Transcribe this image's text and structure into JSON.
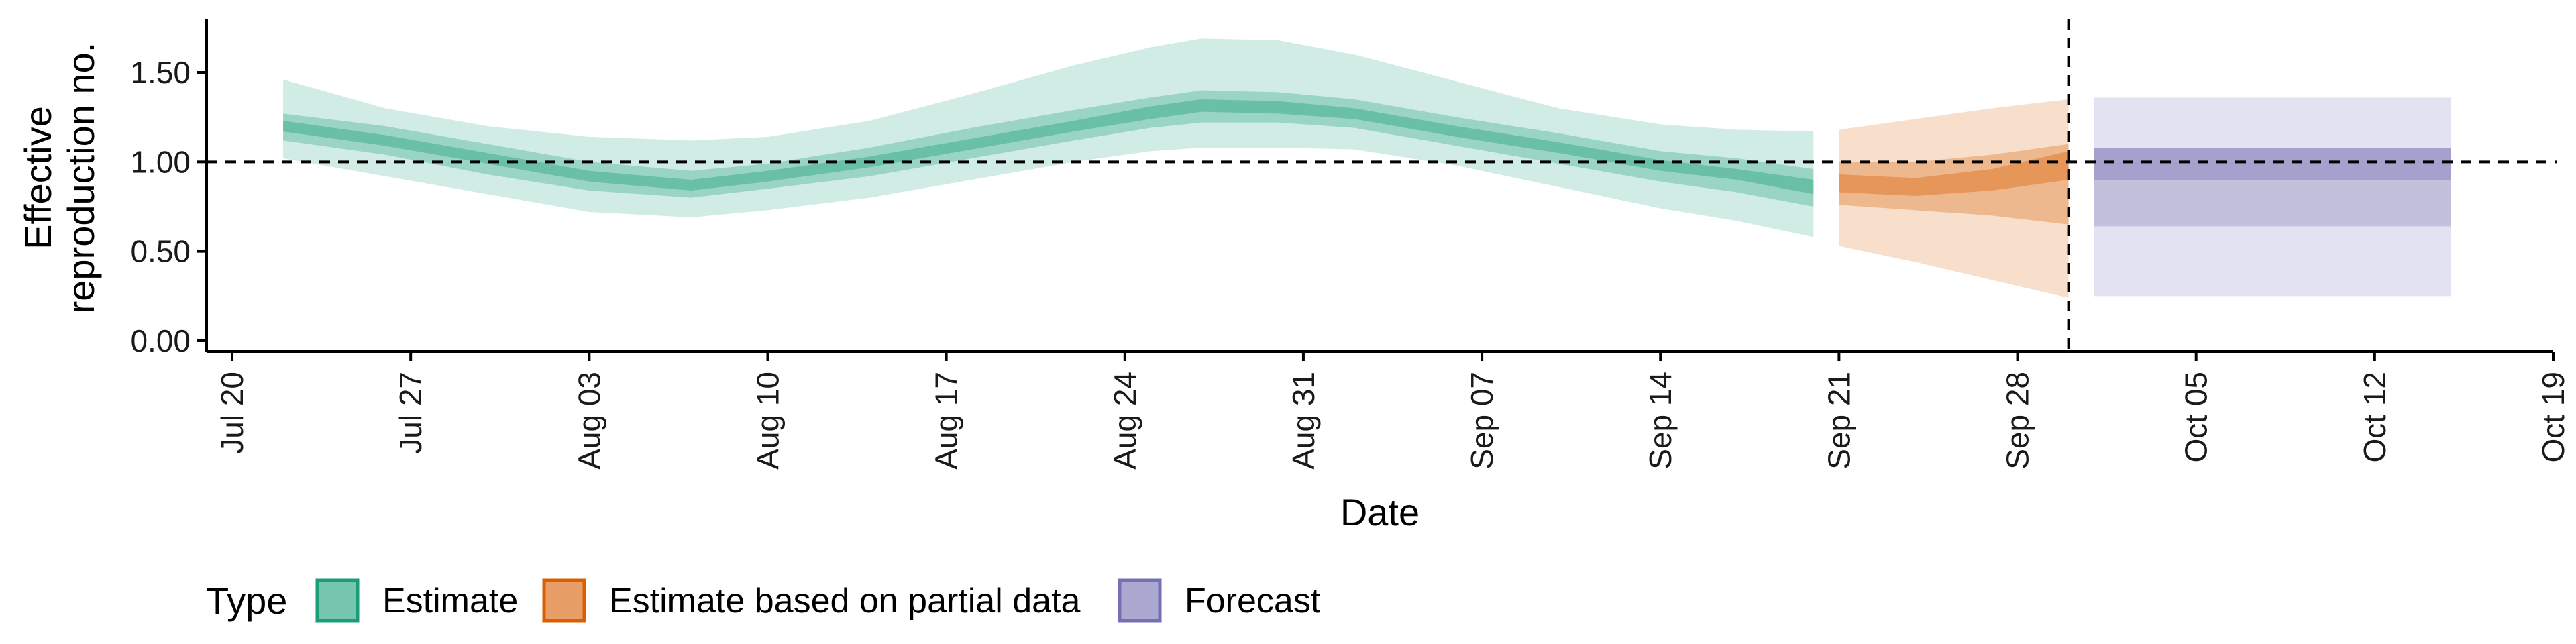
{
  "chart_data": {
    "type": "area",
    "xlabel": "Date",
    "ylabel_lines": [
      "Effective",
      "reproduction no."
    ],
    "ylim": [
      -0.06,
      1.8
    ],
    "y_ticks": [
      0.0,
      0.5,
      1.0,
      1.5
    ],
    "y_tick_labels": [
      "0.00",
      "0.50",
      "1.00",
      "1.50"
    ],
    "x_range": [
      "2020-07-19",
      "2020-10-19"
    ],
    "x_ticks": [
      "2020-07-20",
      "2020-07-27",
      "2020-08-03",
      "2020-08-10",
      "2020-08-17",
      "2020-08-24",
      "2020-08-31",
      "2020-09-07",
      "2020-09-14",
      "2020-09-21",
      "2020-09-28",
      "2020-10-05",
      "2020-10-12",
      "2020-10-19"
    ],
    "x_tick_labels": [
      "Jul 20",
      "Jul 27",
      "Aug 03",
      "Aug 10",
      "Aug 17",
      "Aug 24",
      "Aug 31",
      "Sep 07",
      "Sep 14",
      "Sep 21",
      "Sep 28",
      "Oct 05",
      "Oct 12",
      "Oct 19"
    ],
    "reference_line_y": 1.0,
    "vertical_line_x": "2020-09-30",
    "legend": {
      "title": "Type",
      "position": "bottom-left",
      "items": [
        {
          "label": "Estimate",
          "fill": "#1b9e77",
          "border": "#1b9e77"
        },
        {
          "label": "Estimate based on partial data",
          "fill": "#d95f02",
          "border": "#d95f02"
        },
        {
          "label": "Forecast",
          "fill": "#7570b3",
          "border": "#7570b3"
        }
      ]
    },
    "series": [
      {
        "name": "Estimate",
        "color": "#1b9e77",
        "x": [
          "2020-07-22",
          "2020-07-26",
          "2020-07-30",
          "2020-08-03",
          "2020-08-07",
          "2020-08-10",
          "2020-08-14",
          "2020-08-18",
          "2020-08-22",
          "2020-08-25",
          "2020-08-27",
          "2020-08-30",
          "2020-09-02",
          "2020-09-06",
          "2020-09-10",
          "2020-09-14",
          "2020-09-17",
          "2020-09-20"
        ],
        "median": [
          1.2,
          1.12,
          1.02,
          0.92,
          0.87,
          0.92,
          1.0,
          1.1,
          1.2,
          1.28,
          1.32,
          1.31,
          1.27,
          1.17,
          1.08,
          0.98,
          0.93,
          0.86
        ],
        "lower_90": [
          1.02,
          0.92,
          0.82,
          0.72,
          0.69,
          0.73,
          0.8,
          0.9,
          1.0,
          1.06,
          1.08,
          1.08,
          1.07,
          0.98,
          0.86,
          0.74,
          0.67,
          0.58
        ],
        "upper_90": [
          1.46,
          1.3,
          1.2,
          1.14,
          1.12,
          1.14,
          1.23,
          1.38,
          1.54,
          1.64,
          1.69,
          1.68,
          1.6,
          1.45,
          1.3,
          1.21,
          1.18,
          1.17
        ],
        "lower_50": [
          1.12,
          1.04,
          0.93,
          0.84,
          0.8,
          0.85,
          0.92,
          1.02,
          1.12,
          1.19,
          1.22,
          1.22,
          1.19,
          1.09,
          0.99,
          0.89,
          0.83,
          0.75
        ],
        "upper_50": [
          1.27,
          1.2,
          1.1,
          1.0,
          0.95,
          0.99,
          1.08,
          1.19,
          1.29,
          1.36,
          1.4,
          1.39,
          1.35,
          1.25,
          1.16,
          1.06,
          1.02,
          0.96
        ],
        "lower_20": [
          1.17,
          1.09,
          0.99,
          0.89,
          0.84,
          0.89,
          0.97,
          1.07,
          1.17,
          1.24,
          1.28,
          1.27,
          1.24,
          1.14,
          1.05,
          0.95,
          0.9,
          0.82
        ],
        "upper_20": [
          1.23,
          1.15,
          1.05,
          0.95,
          0.9,
          0.95,
          1.03,
          1.13,
          1.23,
          1.31,
          1.35,
          1.34,
          1.3,
          1.2,
          1.11,
          1.01,
          0.96,
          0.9
        ]
      },
      {
        "name": "Estimate based on partial data",
        "color": "#d95f02",
        "x": [
          "2020-09-21",
          "2020-09-24",
          "2020-09-27",
          "2020-09-30"
        ],
        "median": [
          0.88,
          0.86,
          0.9,
          0.98
        ],
        "lower_90": [
          0.53,
          0.44,
          0.34,
          0.24
        ],
        "upper_90": [
          1.18,
          1.24,
          1.3,
          1.35
        ],
        "lower_50": [
          0.76,
          0.73,
          0.7,
          0.65
        ],
        "upper_50": [
          1.0,
          1.0,
          1.04,
          1.1
        ],
        "lower_20": [
          0.83,
          0.81,
          0.84,
          0.9
        ],
        "upper_20": [
          0.93,
          0.91,
          0.96,
          1.06
        ]
      },
      {
        "name": "Forecast",
        "color": "#7570b3",
        "x": [
          "2020-10-01",
          "2020-10-15"
        ],
        "lower_90": [
          0.25,
          0.25
        ],
        "upper_90": [
          1.36,
          1.36
        ],
        "lower_50": [
          0.64,
          0.64
        ],
        "upper_50": [
          1.08,
          1.08
        ],
        "lower_20": [
          0.9,
          0.9
        ],
        "upper_20": [
          1.08,
          1.08
        ]
      }
    ]
  }
}
